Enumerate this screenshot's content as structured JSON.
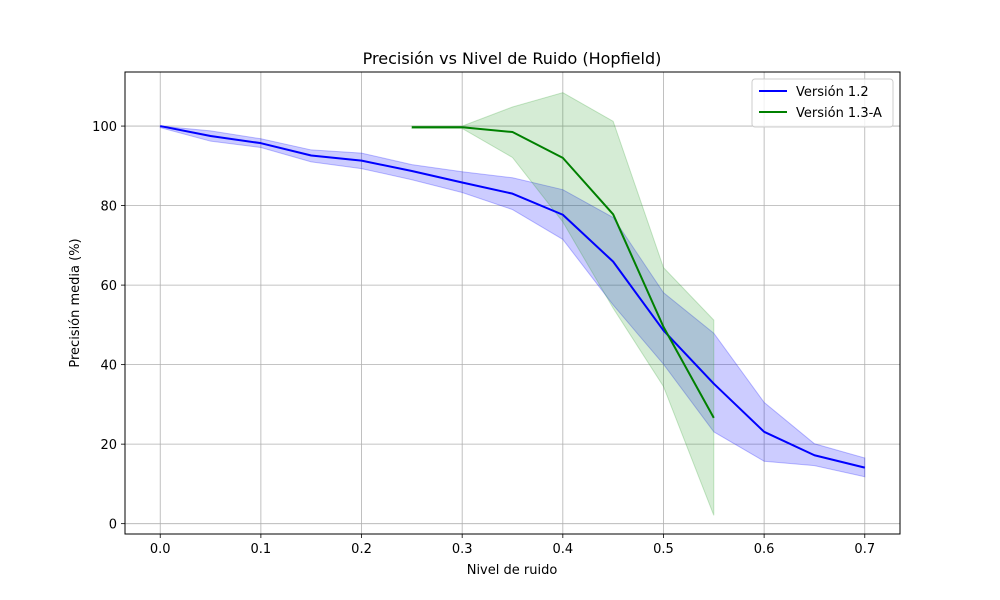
{
  "chart_data": {
    "type": "line",
    "title": "Precisión vs Nivel de Ruido (Hopfield)",
    "xlabel": "Nivel de ruido",
    "ylabel": "Precisión media (%)",
    "xlim": [
      -0.035,
      0.735
    ],
    "ylim": [
      -2.6,
      113.6
    ],
    "xticks": [
      0.0,
      0.1,
      0.2,
      0.3,
      0.4,
      0.5,
      0.6,
      0.7
    ],
    "xtick_labels": [
      "0.0",
      "0.1",
      "0.2",
      "0.3",
      "0.4",
      "0.5",
      "0.6",
      "0.7"
    ],
    "yticks": [
      0,
      20,
      40,
      60,
      80,
      100
    ],
    "ytick_labels": [
      "0",
      "20",
      "40",
      "60",
      "80",
      "100"
    ],
    "grid": true,
    "legend_position": "top-right",
    "series": [
      {
        "name": "Versión 1.2",
        "color": "#0000ff",
        "band_color": "#0000ff",
        "x": [
          0.0,
          0.05,
          0.1,
          0.15,
          0.2,
          0.25,
          0.3,
          0.35,
          0.4,
          0.45,
          0.5,
          0.55,
          0.6,
          0.65,
          0.7
        ],
        "y": [
          100,
          97.5,
          95.7,
          92.6,
          91.3,
          88.7,
          85.8,
          83.0,
          77.7,
          65.9,
          48.6,
          35.2,
          23.1,
          17.2,
          14.1
        ],
        "lower": [
          99.6,
          96.2,
          94.6,
          91.0,
          89.3,
          86.5,
          83.3,
          79.0,
          71.5,
          55.0,
          40.1,
          23.1,
          15.7,
          14.6,
          11.8
        ],
        "upper": [
          100,
          98.8,
          96.8,
          94.0,
          93.2,
          90.3,
          88.5,
          87.0,
          84.0,
          77.0,
          58.1,
          47.9,
          30.5,
          20.1,
          16.5
        ]
      },
      {
        "name": "Versión 1.3-A",
        "color": "#008000",
        "band_color": "#2ca02c",
        "x": [
          0.25,
          0.3,
          0.35,
          0.4,
          0.45,
          0.5,
          0.55
        ],
        "y": [
          99.7,
          99.7,
          98.5,
          92.0,
          77.8,
          49.5,
          26.6
        ],
        "lower": [
          99.4,
          99.4,
          92.1,
          75.9,
          54.2,
          34.5,
          2.1
        ],
        "upper": [
          100,
          100,
          104.8,
          108.4,
          101.2,
          64.4,
          51.2
        ]
      }
    ]
  }
}
